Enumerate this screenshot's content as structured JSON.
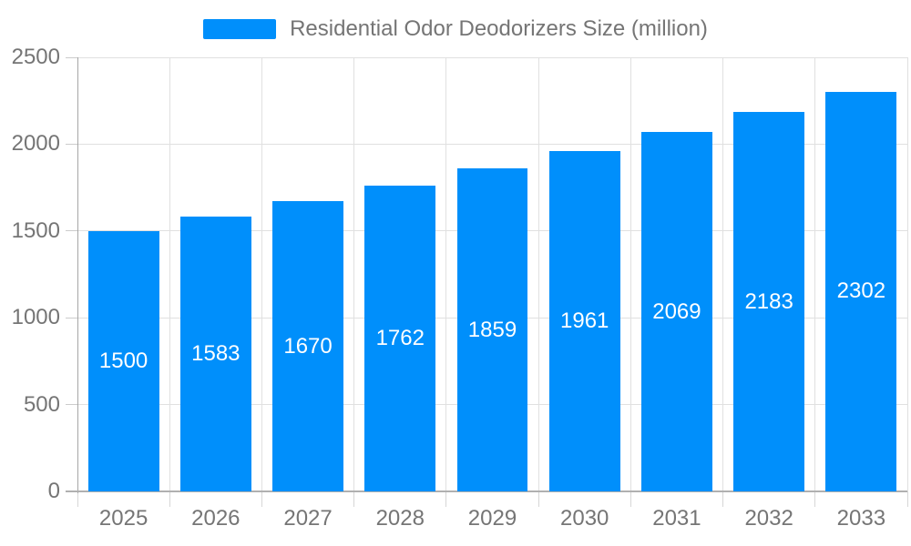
{
  "chart_data": {
    "type": "bar",
    "title": "Residential Odor Deodorizers Size (million)",
    "categories": [
      "2025",
      "2026",
      "2027",
      "2028",
      "2029",
      "2030",
      "2031",
      "2032",
      "2033"
    ],
    "series": [
      {
        "name": "Residential Odor Deodorizers Size (million)",
        "values": [
          1500,
          1583,
          1670,
          1762,
          1859,
          1961,
          2069,
          2183,
          2302
        ]
      }
    ],
    "xlabel": "",
    "ylabel": "",
    "ylim": [
      0,
      2500
    ],
    "ytick_step": 500,
    "ytick_labels": [
      "0",
      "500",
      "1000",
      "1500",
      "2000",
      "2500"
    ],
    "grid": true,
    "legend_position": "top",
    "bar_color": "#008FFB",
    "value_label_color": "#ffffff",
    "axis_text_color": "#757575",
    "grid_color": "#e0e0e0",
    "axis_line_color": "#b0b0b0"
  }
}
